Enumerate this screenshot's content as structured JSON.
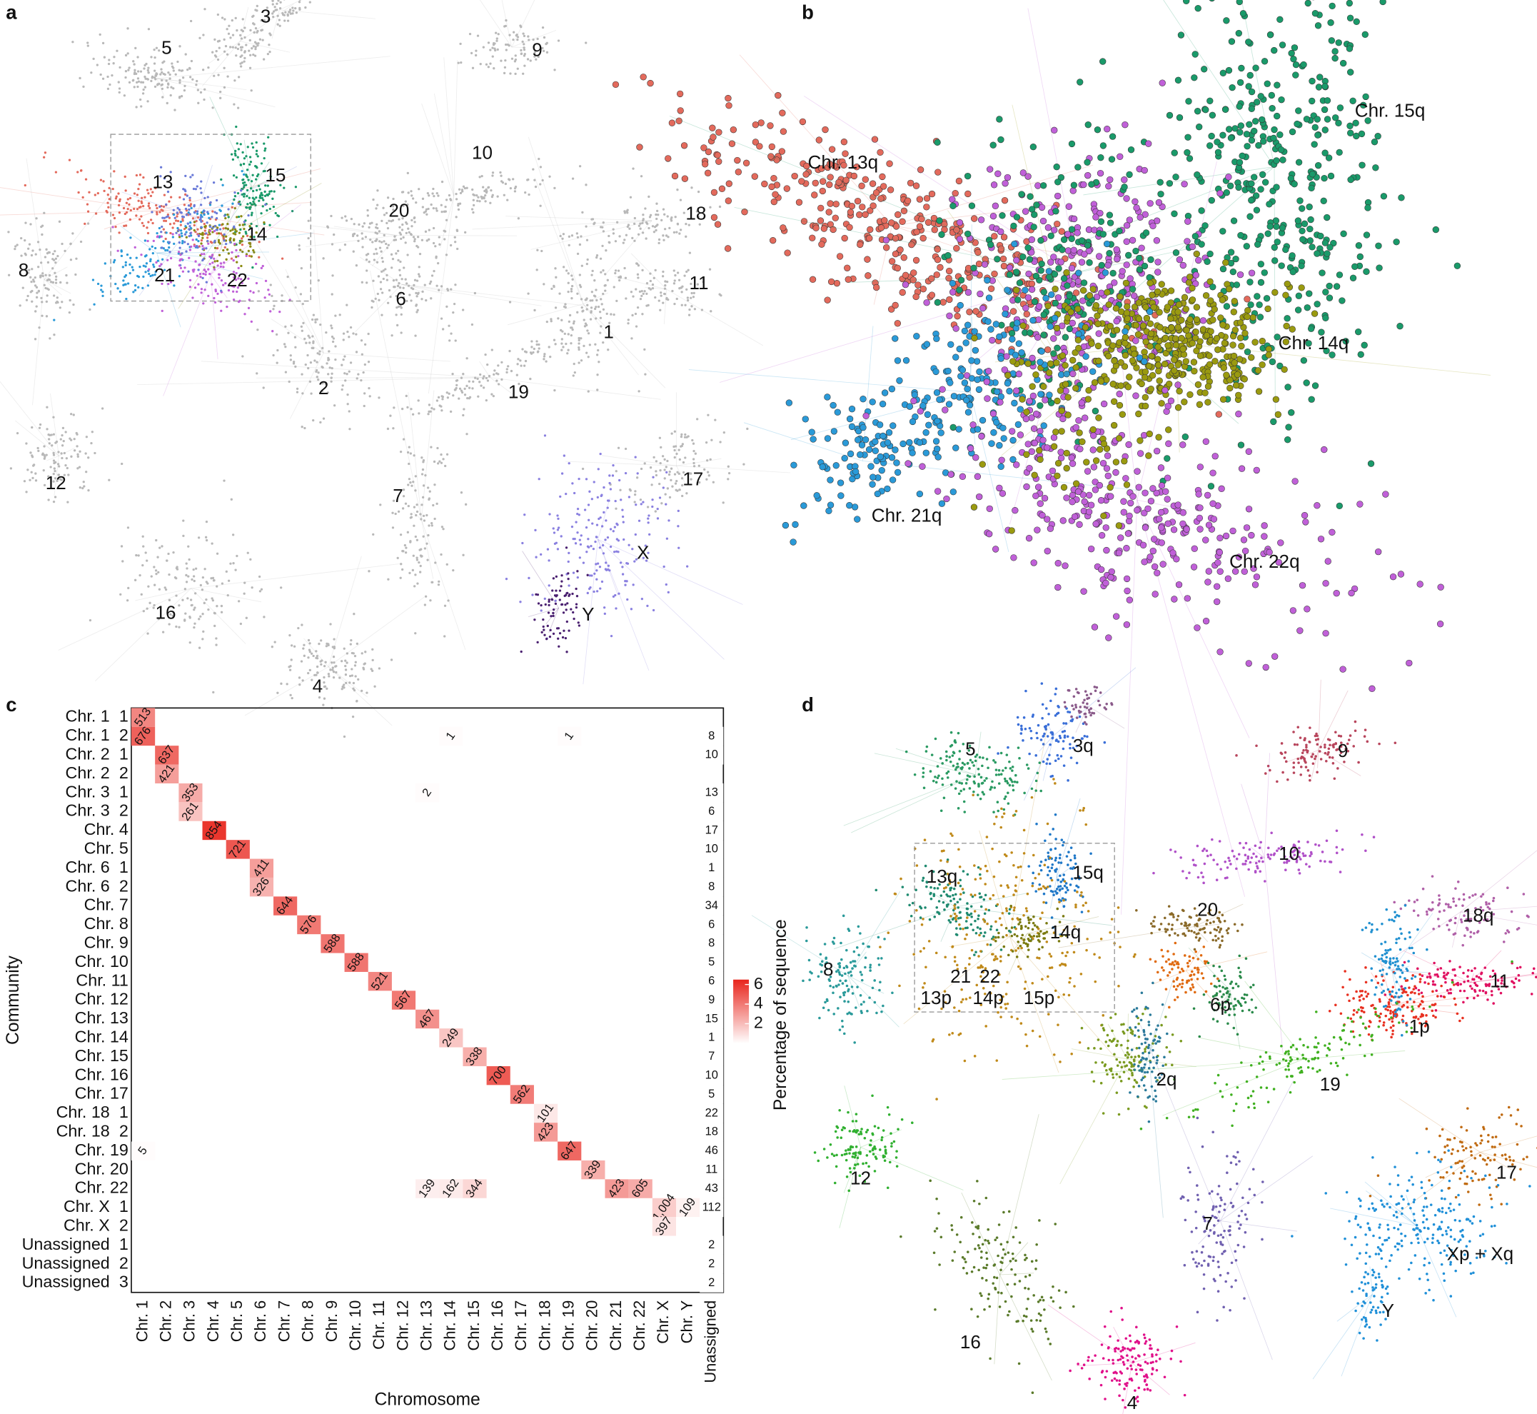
{
  "panels": {
    "a": {
      "letter": "a",
      "labels": [
        "5",
        "3",
        "9",
        "10",
        "15",
        "13",
        "20",
        "18",
        "14",
        "8",
        "21",
        "22",
        "11",
        "6",
        "1",
        "2",
        "19",
        "12",
        "17",
        "7",
        "X",
        "16",
        "Y",
        "4"
      ]
    },
    "b": {
      "letter": "b",
      "labels": [
        "Chr. 13q",
        "Chr. 15q",
        "Chr. 14q",
        "Chr. 21q",
        "Chr. 22q"
      ]
    },
    "d": {
      "letter": "d",
      "labels": [
        "5",
        "3q",
        "9",
        "10",
        "15q",
        "13q",
        "20",
        "18q",
        "14q",
        "8",
        "11",
        "21",
        "22",
        "13p",
        "14p",
        "15p",
        "6p",
        "1p",
        "2q",
        "19",
        "12",
        "17",
        "7",
        "Xp + Xq",
        "Y",
        "16",
        "4"
      ]
    }
  },
  "chart_data": {
    "type": "heatmap",
    "letter": "c",
    "xlabel": "Chromosome",
    "ylabel": "Community",
    "rows": [
      {
        "name": "Chr. 1",
        "part": "1"
      },
      {
        "name": "Chr. 1",
        "part": "2"
      },
      {
        "name": "Chr. 2",
        "part": "1"
      },
      {
        "name": "Chr. 2",
        "part": "2"
      },
      {
        "name": "Chr. 3",
        "part": "1"
      },
      {
        "name": "Chr. 3",
        "part": "2"
      },
      {
        "name": "Chr. 4"
      },
      {
        "name": "Chr. 5"
      },
      {
        "name": "Chr. 6",
        "part": "1"
      },
      {
        "name": "Chr. 6",
        "part": "2"
      },
      {
        "name": "Chr. 7"
      },
      {
        "name": "Chr. 8"
      },
      {
        "name": "Chr. 9"
      },
      {
        "name": "Chr. 10"
      },
      {
        "name": "Chr. 11"
      },
      {
        "name": "Chr. 12"
      },
      {
        "name": "Chr. 13"
      },
      {
        "name": "Chr. 14"
      },
      {
        "name": "Chr. 15"
      },
      {
        "name": "Chr. 16"
      },
      {
        "name": "Chr. 17"
      },
      {
        "name": "Chr. 18",
        "part": "1"
      },
      {
        "name": "Chr. 18",
        "part": "2"
      },
      {
        "name": "Chr. 19"
      },
      {
        "name": "Chr. 20"
      },
      {
        "name": "Chr. 22"
      },
      {
        "name": "Chr. X",
        "part": "1"
      },
      {
        "name": "Chr. X",
        "part": "2"
      },
      {
        "name": "Unassigned",
        "part": "1"
      },
      {
        "name": "Unassigned",
        "part": "2"
      },
      {
        "name": "Unassigned",
        "part": "3"
      }
    ],
    "columns": [
      "Chr. 1",
      "Chr. 2",
      "Chr. 3",
      "Chr. 4",
      "Chr. 5",
      "Chr. 6",
      "Chr. 7",
      "Chr. 8",
      "Chr. 9",
      "Chr. 10",
      "Chr. 11",
      "Chr. 12",
      "Chr. 13",
      "Chr. 14",
      "Chr. 15",
      "Chr. 16",
      "Chr. 17",
      "Chr. 18",
      "Chr. 19",
      "Chr. 20",
      "Chr. 21",
      "Chr. 22",
      "Chr. X",
      "Chr. Y",
      "Unassigned"
    ],
    "cells": [
      {
        "row": 0,
        "col": 0,
        "value": 513,
        "pct": 3.6
      },
      {
        "row": 1,
        "col": 0,
        "value": 676,
        "pct": 4.7
      },
      {
        "row": 1,
        "col": 13,
        "value": 1,
        "pct": 0.1
      },
      {
        "row": 1,
        "col": 18,
        "value": 1,
        "pct": 0.1
      },
      {
        "row": 1,
        "col": 24,
        "value": 8,
        "pct": 0
      },
      {
        "row": 2,
        "col": 1,
        "value": 637,
        "pct": 4.5
      },
      {
        "row": 2,
        "col": 24,
        "value": 10,
        "pct": 0
      },
      {
        "row": 3,
        "col": 1,
        "value": 421,
        "pct": 2.9
      },
      {
        "row": 4,
        "col": 2,
        "value": 353,
        "pct": 2.5
      },
      {
        "row": 4,
        "col": 12,
        "value": 2,
        "pct": 0.1
      },
      {
        "row": 4,
        "col": 24,
        "value": 13,
        "pct": 0
      },
      {
        "row": 5,
        "col": 2,
        "value": 261,
        "pct": 1.8
      },
      {
        "row": 5,
        "col": 24,
        "value": 6,
        "pct": 0
      },
      {
        "row": 6,
        "col": 3,
        "value": 854,
        "pct": 6
      },
      {
        "row": 6,
        "col": 24,
        "value": 17,
        "pct": 0
      },
      {
        "row": 7,
        "col": 4,
        "value": 721,
        "pct": 5
      },
      {
        "row": 7,
        "col": 24,
        "value": 10,
        "pct": 0
      },
      {
        "row": 8,
        "col": 5,
        "value": 411,
        "pct": 2.9
      },
      {
        "row": 8,
        "col": 24,
        "value": 1,
        "pct": 0
      },
      {
        "row": 9,
        "col": 5,
        "value": 326,
        "pct": 2.3
      },
      {
        "row": 9,
        "col": 24,
        "value": 8,
        "pct": 0
      },
      {
        "row": 10,
        "col": 6,
        "value": 644,
        "pct": 4.5
      },
      {
        "row": 10,
        "col": 24,
        "value": 34,
        "pct": 0
      },
      {
        "row": 11,
        "col": 7,
        "value": 576,
        "pct": 4
      },
      {
        "row": 11,
        "col": 24,
        "value": 6,
        "pct": 0
      },
      {
        "row": 12,
        "col": 8,
        "value": 588,
        "pct": 4.1
      },
      {
        "row": 12,
        "col": 24,
        "value": 8,
        "pct": 0
      },
      {
        "row": 13,
        "col": 9,
        "value": 588,
        "pct": 4.1
      },
      {
        "row": 13,
        "col": 24,
        "value": 5,
        "pct": 0
      },
      {
        "row": 14,
        "col": 10,
        "value": 521,
        "pct": 3.6
      },
      {
        "row": 14,
        "col": 24,
        "value": 6,
        "pct": 0
      },
      {
        "row": 15,
        "col": 11,
        "value": 567,
        "pct": 4
      },
      {
        "row": 15,
        "col": 24,
        "value": 9,
        "pct": 0
      },
      {
        "row": 16,
        "col": 12,
        "value": 467,
        "pct": 3.3
      },
      {
        "row": 16,
        "col": 24,
        "value": 15,
        "pct": 0
      },
      {
        "row": 17,
        "col": 13,
        "value": 249,
        "pct": 1.7
      },
      {
        "row": 17,
        "col": 24,
        "value": 1,
        "pct": 0
      },
      {
        "row": 18,
        "col": 14,
        "value": 338,
        "pct": 2.4
      },
      {
        "row": 18,
        "col": 24,
        "value": 7,
        "pct": 0
      },
      {
        "row": 19,
        "col": 15,
        "value": 700,
        "pct": 4.9
      },
      {
        "row": 19,
        "col": 24,
        "value": 10,
        "pct": 0
      },
      {
        "row": 20,
        "col": 16,
        "value": 562,
        "pct": 3.9
      },
      {
        "row": 20,
        "col": 24,
        "value": 5,
        "pct": 0
      },
      {
        "row": 21,
        "col": 17,
        "value": 101,
        "pct": 0.7
      },
      {
        "row": 21,
        "col": 24,
        "value": 22,
        "pct": 0
      },
      {
        "row": 22,
        "col": 17,
        "value": 423,
        "pct": 3
      },
      {
        "row": 22,
        "col": 24,
        "value": 18,
        "pct": 0
      },
      {
        "row": 23,
        "col": 0,
        "value": 5,
        "pct": 0.1
      },
      {
        "row": 23,
        "col": 18,
        "value": 647,
        "pct": 4.5
      },
      {
        "row": 23,
        "col": 24,
        "value": 46,
        "pct": 0
      },
      {
        "row": 24,
        "col": 19,
        "value": 339,
        "pct": 2.4
      },
      {
        "row": 24,
        "col": 24,
        "value": 11,
        "pct": 0
      },
      {
        "row": 25,
        "col": 12,
        "value": 139,
        "pct": 0.5
      },
      {
        "row": 25,
        "col": 13,
        "value": 162,
        "pct": 0.6
      },
      {
        "row": 25,
        "col": 14,
        "value": 344,
        "pct": 1.2
      },
      {
        "row": 25,
        "col": 20,
        "value": 423,
        "pct": 3
      },
      {
        "row": 25,
        "col": 21,
        "value": 605,
        "pct": 2.5
      },
      {
        "row": 25,
        "col": 24,
        "value": 43,
        "pct": 0
      },
      {
        "row": 26,
        "col": 22,
        "value": 1004,
        "value_label": "1,004",
        "pct": 1.5
      },
      {
        "row": 26,
        "col": 23,
        "value": 109,
        "pct": 0.4
      },
      {
        "row": 26,
        "col": 24,
        "value": 112,
        "pct": 0
      },
      {
        "row": 27,
        "col": 22,
        "value": 397,
        "pct": 0.8
      },
      {
        "row": 28,
        "col": 24,
        "value": 2,
        "pct": 0
      },
      {
        "row": 29,
        "col": 24,
        "value": 2,
        "pct": 0
      },
      {
        "row": 30,
        "col": 24,
        "value": 2,
        "pct": 0
      }
    ],
    "colorbar": {
      "title": "Percentage of sequence",
      "lim": [
        0,
        6.5
      ],
      "ticks": [
        2,
        4,
        6
      ],
      "colors": [
        "#ffffff",
        "#e8251c"
      ]
    }
  }
}
